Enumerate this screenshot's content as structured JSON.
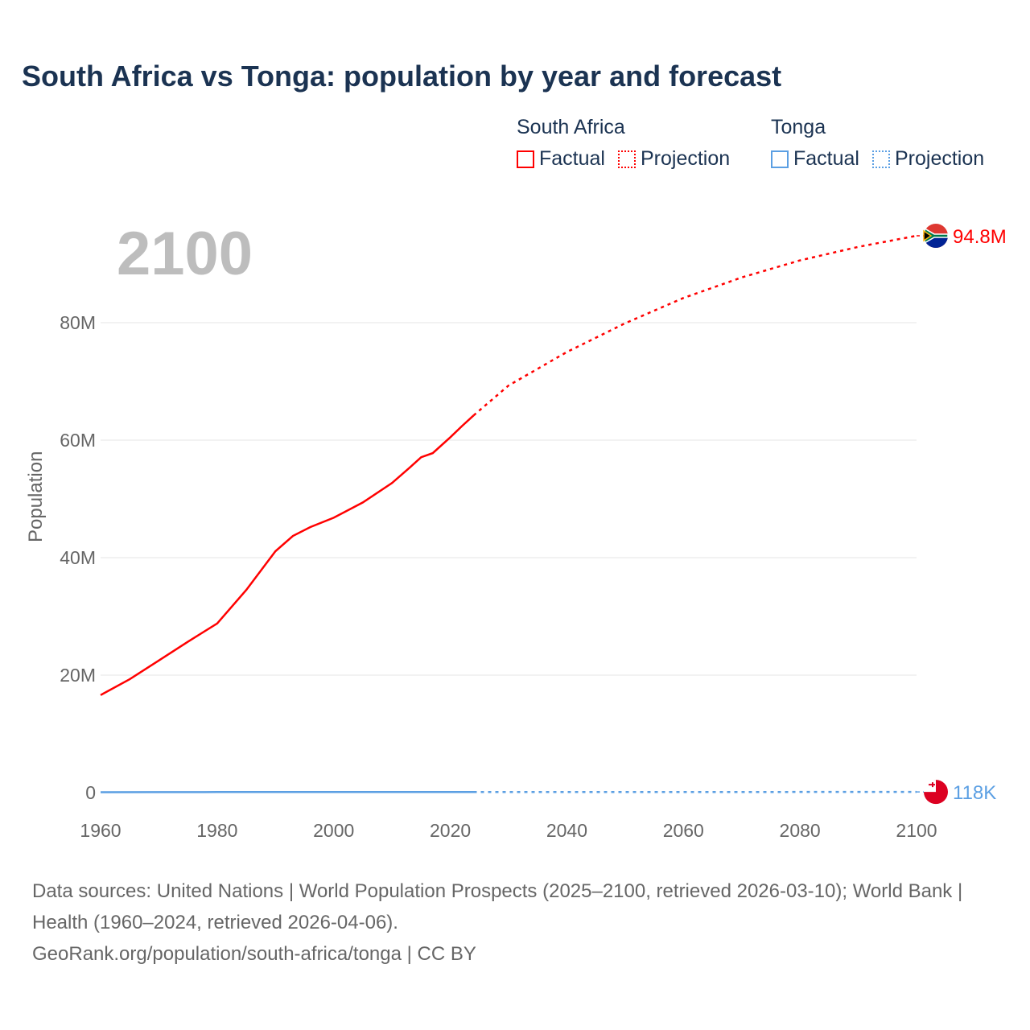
{
  "title": "South Africa vs Tonga: population by year and forecast",
  "legend": {
    "groups": [
      {
        "name": "South Africa",
        "color": "#ff0000",
        "factual": "Factual",
        "projection": "Projection"
      },
      {
        "name": "Tonga",
        "color": "#5b9fe3",
        "factual": "Factual",
        "projection": "Projection"
      }
    ]
  },
  "year_display": "2100",
  "source_text": "Data sources: United Nations | World Population Prospects (2025–2100, retrieved 2026-03-10); World Bank | Health (1960–2024, retrieved 2026-04-06).",
  "credit": "GeoRank.org/population/south-africa/tonga | CC BY",
  "chart_data": {
    "type": "line",
    "title": "South Africa vs Tonga: population by year and forecast",
    "xlabel": "",
    "ylabel": "Population",
    "xlim": [
      1960,
      2100
    ],
    "ylim": [
      0,
      95
    ],
    "x_ticks": [
      "1960",
      "1980",
      "2000",
      "2020",
      "2040",
      "2060",
      "2080",
      "2100"
    ],
    "y_ticks": [
      {
        "v": 0,
        "label": "0"
      },
      {
        "v": 20,
        "label": "20M"
      },
      {
        "v": 40,
        "label": "40M"
      },
      {
        "v": 60,
        "label": "60M"
      },
      {
        "v": 80,
        "label": "80M"
      }
    ],
    "grid": true,
    "series": [
      {
        "name": "South Africa",
        "color": "#ff0000",
        "end_label": "94.8M",
        "factual": {
          "x": [
            1960,
            1965,
            1970,
            1975,
            1980,
            1985,
            1990,
            1993,
            1996,
            2000,
            2005,
            2010,
            2013,
            2015,
            2017,
            2020,
            2022,
            2024
          ],
          "y": [
            16.6,
            19.3,
            22.5,
            25.7,
            28.8,
            34.5,
            41.1,
            43.7,
            45.2,
            46.8,
            49.4,
            52.7,
            55.3,
            57.1,
            57.8,
            60.5,
            62.4,
            64.2
          ]
        },
        "projection": {
          "x": [
            2024,
            2030,
            2040,
            2050,
            2060,
            2070,
            2080,
            2090,
            2100
          ],
          "y": [
            64.2,
            69.3,
            75.0,
            79.9,
            84.2,
            87.7,
            90.6,
            92.9,
            94.8
          ]
        }
      },
      {
        "name": "Tonga",
        "color": "#5b9fe3",
        "end_label": "118K",
        "factual": {
          "x": [
            1960,
            1970,
            1980,
            1990,
            2000,
            2010,
            2020,
            2024
          ],
          "y": [
            0.062,
            0.084,
            0.094,
            0.096,
            0.098,
            0.104,
            0.105,
            0.104
          ]
        },
        "projection": {
          "x": [
            2024,
            2050,
            2075,
            2100
          ],
          "y": [
            0.104,
            0.11,
            0.115,
            0.118
          ]
        }
      }
    ]
  }
}
